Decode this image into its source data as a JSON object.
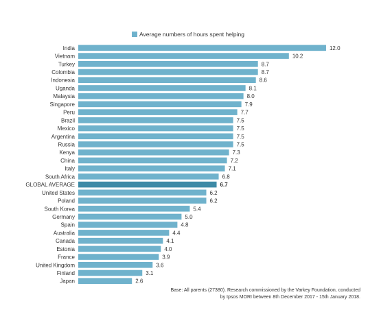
{
  "chart_data": {
    "type": "bar",
    "orientation": "horizontal",
    "legend": {
      "label": "Average numbers of hours spent helping",
      "position": "top"
    },
    "categories": [
      "India",
      "Vietnam",
      "Turkey",
      "Colombia",
      "Indonesia",
      "Uganda",
      "Malaysia",
      "Singapore",
      "Peru",
      "Brazil",
      "Mexico",
      "Argentina",
      "Russia",
      "Kenya",
      "China",
      "Italy",
      "South Africa",
      "GLOBAL AVERAGE",
      "United States",
      "Poland",
      "South Korea",
      "Germany",
      "Spain",
      "Australia",
      "Canada",
      "Estonia",
      "France",
      "United Kingdom",
      "Finland",
      "Japan"
    ],
    "values": [
      12.0,
      10.2,
      8.7,
      8.7,
      8.6,
      8.1,
      8.0,
      7.9,
      7.7,
      7.5,
      7.5,
      7.5,
      7.5,
      7.3,
      7.2,
      7.1,
      6.8,
      6.7,
      6.2,
      6.2,
      5.4,
      5.0,
      4.8,
      4.4,
      4.1,
      4.0,
      3.9,
      3.6,
      3.1,
      2.6
    ],
    "value_labels": [
      "12.0",
      "10.2",
      "8.7",
      "8.7",
      "8.6",
      "8.1",
      "8.0",
      "7.9",
      "7.7",
      "7.5",
      "7.5",
      "7.5",
      "7.5",
      "7.3",
      "7.2",
      "7.1",
      "6.8",
      "6.7",
      "6.2",
      "6.2",
      "5.4",
      "5.0",
      "4.8",
      "4.4",
      "4.1",
      "4.0",
      "3.9",
      "3.6",
      "3.1",
      "2.6"
    ],
    "highlight": "GLOBAL AVERAGE",
    "xlim": [
      0,
      12
    ],
    "grid": false,
    "colors": {
      "bar": "#6fb2cc",
      "highlight": "#3d8aa6",
      "label": "#333333"
    }
  },
  "note": {
    "line1": "Base: All parents (27380). Research commissioned by the Varkey Foundation, conducted",
    "line2": "by Ipsos MORI between 8th December 2017 - 15th January 2018."
  }
}
